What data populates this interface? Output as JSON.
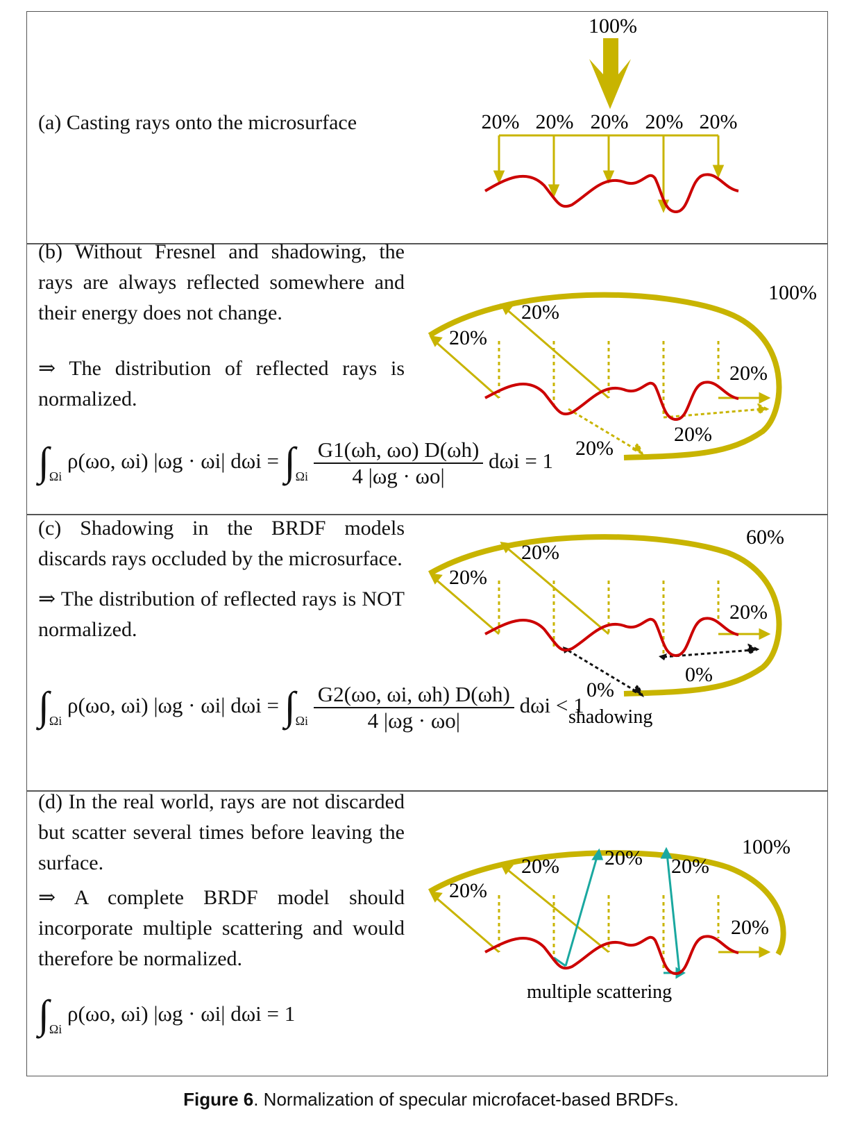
{
  "panels": {
    "a": {
      "text": "(a) Casting rays onto the microsurface",
      "incoming_label": "100%",
      "ray_labels": [
        "20%",
        "20%",
        "20%",
        "20%",
        "20%"
      ]
    },
    "b": {
      "text1": "(b) Without Fresnel and shadowing, the rays are always reflected somewhere and their energy does not change.",
      "text2": "⇒ The distribution of reflected rays is normalized.",
      "equation_lhs": "ρ(ωo, ωi) |ωg · ωi| dωi =",
      "equation_num": "G1(ωh, ωo) D(ωh)",
      "equation_den": "4 |ωg · ωo|",
      "equation_rhs": "dωi = 1",
      "total_label": "100%",
      "labels": [
        "20%",
        "20%",
        "20%",
        "20%",
        "20%"
      ]
    },
    "c": {
      "text1": "(c) Shadowing in the BRDF models discards rays occluded by the microsurface.",
      "text2": "⇒ The distribution of reflected rays is NOT normalized.",
      "equation_lhs": "ρ(ωo, ωi) |ωg · ωi| dωi =",
      "equation_num": "G2(ωo, ωi, ωh) D(ωh)",
      "equation_den": "4 |ωg · ωo|",
      "equation_rhs": "dωi < 1",
      "total_label": "60%",
      "labels": [
        "20%",
        "20%",
        "20%",
        "0%",
        "0%"
      ],
      "shadow_label": "shadowing"
    },
    "d": {
      "text1": "(d) In the real world, rays are not discarded but scatter several times before leaving the surface.",
      "text2": "⇒ A complete BRDF model should incorporate multiple scattering and would therefore be normalized.",
      "equation": "ρ(ωo, ωi) |ωg · ωi| dωi = 1",
      "total_label": "100%",
      "labels": [
        "20%",
        "20%",
        "20%",
        "20%",
        "20%"
      ],
      "ms_label": "multiple scattering"
    }
  },
  "caption": {
    "figure": "Figure 6",
    "text": ". Normalization of specular microfacet-based BRDFs."
  },
  "colors": {
    "olive": "#c8b400",
    "red": "#cc0000",
    "teal": "#1aa8a0",
    "black": "#111111"
  }
}
